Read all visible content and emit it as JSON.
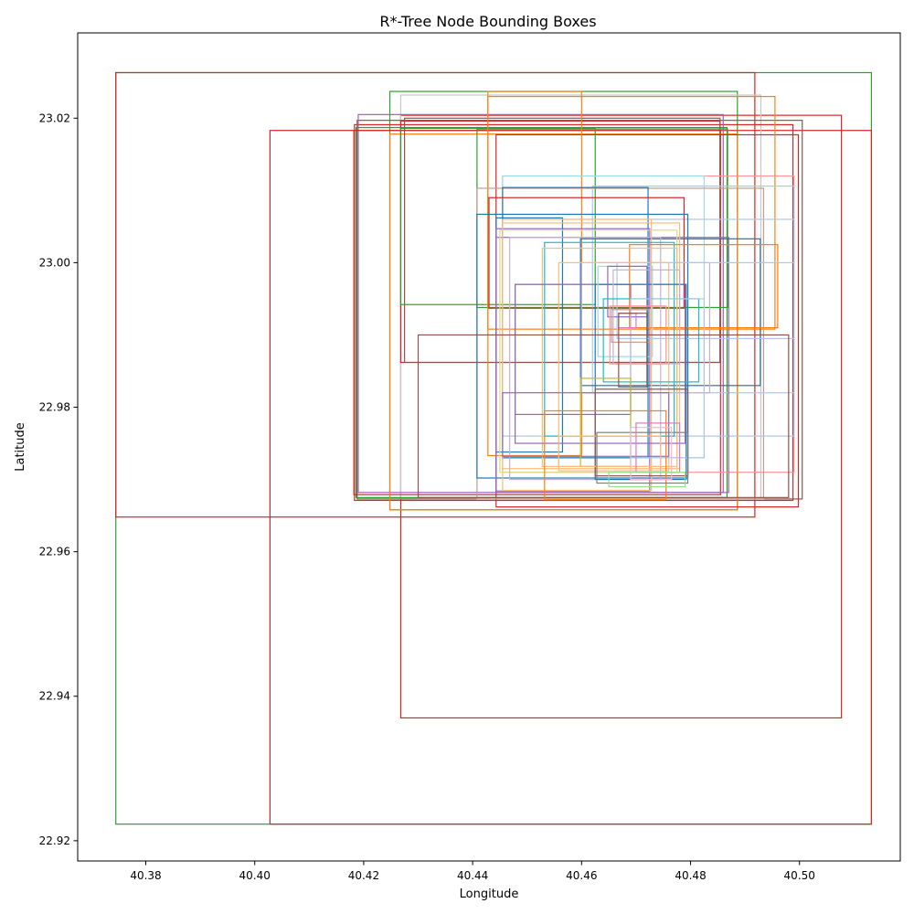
{
  "chart_data": {
    "type": "rectangles",
    "title": "R*-Tree Node Bounding Boxes",
    "xlabel": "Longitude",
    "ylabel": "Latitude",
    "xlim": [
      40.3675,
      40.5185
    ],
    "ylim": [
      22.9172,
      23.0318
    ],
    "x_ticks": [
      "40.38",
      "40.40",
      "40.42",
      "40.44",
      "40.46",
      "40.48",
      "40.50"
    ],
    "y_ticks": [
      "22.92",
      "22.94",
      "22.96",
      "22.98",
      "23.00",
      "23.02"
    ],
    "grid": false,
    "legend": "none",
    "palette": [
      "#1f77b4",
      "#ff7f0e",
      "#2ca02c",
      "#d62728",
      "#9467bd",
      "#8c564b",
      "#e377c2",
      "#7f7f7f",
      "#bcbd22",
      "#17becf",
      "#aec7e8",
      "#ffbb78",
      "#98df8a",
      "#ff9896",
      "#c5b0d5",
      "#c49c94",
      "#f7b6d2",
      "#c7c7c7",
      "#dbdb8d",
      "#9edae5"
    ],
    "boxes": [
      {
        "xmin": 40.3745,
        "ymin": 22.9223,
        "xmax": 40.5132,
        "ymax": 23.0263,
        "color": "#2ca02c"
      },
      {
        "xmin": 40.4028,
        "ymin": 22.9223,
        "xmax": 40.5132,
        "ymax": 23.0183,
        "color": "#d62728"
      },
      {
        "xmin": 40.3745,
        "ymin": 22.9648,
        "xmax": 40.4918,
        "ymax": 23.0263,
        "color": "#d62728"
      },
      {
        "xmin": 40.4268,
        "ymin": 22.937,
        "xmax": 40.5077,
        "ymax": 23.0204,
        "color": "#d62728"
      },
      {
        "xmin": 40.4248,
        "ymin": 22.9658,
        "xmax": 40.4886,
        "ymax": 23.0237,
        "color": "#2ca02c"
      },
      {
        "xmin": 40.4268,
        "ymin": 22.9673,
        "xmax": 40.4929,
        "ymax": 23.0232,
        "color": "#c7c7c7"
      },
      {
        "xmin": 40.4183,
        "ymin": 22.9671,
        "xmax": 40.4988,
        "ymax": 23.0191,
        "color": "#d62728"
      },
      {
        "xmin": 40.4188,
        "ymin": 22.9673,
        "xmax": 40.5005,
        "ymax": 23.0197,
        "color": "#8c564b"
      },
      {
        "xmin": 40.419,
        "ymin": 22.9682,
        "xmax": 40.486,
        "ymax": 23.0205,
        "color": "#9467bd"
      },
      {
        "xmin": 40.4186,
        "ymin": 22.9675,
        "xmax": 40.4867,
        "ymax": 23.0187,
        "color": "#2ca02c"
      },
      {
        "xmin": 40.4182,
        "ymin": 22.9679,
        "xmax": 40.4855,
        "ymax": 23.0183,
        "color": "#d62728"
      },
      {
        "xmin": 40.4248,
        "ymin": 22.9658,
        "xmax": 40.4886,
        "ymax": 23.0178,
        "color": "#ff7f0e"
      },
      {
        "xmin": 40.4443,
        "ymin": 22.9662,
        "xmax": 40.4998,
        "ymax": 23.0177,
        "color": "#d62728"
      },
      {
        "xmin": 40.4268,
        "ymin": 22.9862,
        "xmax": 40.4854,
        "ymax": 23.0196,
        "color": "#d62728"
      },
      {
        "xmin": 40.4275,
        "ymin": 22.9862,
        "xmax": 40.4854,
        "ymax": 23.02,
        "color": "#8c564b"
      },
      {
        "xmin": 40.4408,
        "ymin": 22.9938,
        "xmax": 40.4868,
        "ymax": 23.0185,
        "color": "#2ca02c"
      },
      {
        "xmin": 40.4268,
        "ymin": 22.9942,
        "xmax": 40.4625,
        "ymax": 23.0186,
        "color": "#2ca02c"
      },
      {
        "xmin": 40.4428,
        "ymin": 22.9733,
        "xmax": 40.46,
        "ymax": 23.0237,
        "color": "#ff7f0e"
      },
      {
        "xmin": 40.4428,
        "ymin": 22.9908,
        "xmax": 40.4955,
        "ymax": 23.023,
        "color": "#ff7f0e"
      },
      {
        "xmin": 40.4455,
        "ymin": 22.971,
        "xmax": 40.499,
        "ymax": 23.012,
        "color": "#ff9896"
      },
      {
        "xmin": 40.4455,
        "ymin": 22.973,
        "xmax": 40.4825,
        "ymax": 23.012,
        "color": "#9edae5"
      },
      {
        "xmin": 40.4408,
        "ymin": 22.9673,
        "xmax": 40.4934,
        "ymax": 23.0103,
        "color": "#c49c94"
      },
      {
        "xmin": 40.4455,
        "ymin": 22.976,
        "xmax": 40.499,
        "ymax": 23.006,
        "color": "#aec7e8"
      },
      {
        "xmin": 40.462,
        "ymin": 22.982,
        "xmax": 40.499,
        "ymax": 23.0106,
        "color": "#aec7e8"
      },
      {
        "xmin": 40.4455,
        "ymin": 22.973,
        "xmax": 40.4722,
        "ymax": 23.0104,
        "color": "#1f77b4"
      },
      {
        "xmin": 40.443,
        "ymin": 22.9937,
        "xmax": 40.4788,
        "ymax": 23.009,
        "color": "#d62728"
      },
      {
        "xmin": 40.4408,
        "ymin": 22.9702,
        "xmax": 40.4795,
        "ymax": 23.0067,
        "color": "#1f77b4"
      },
      {
        "xmin": 40.4443,
        "ymin": 22.9738,
        "xmax": 40.4565,
        "ymax": 23.0062,
        "color": "#1f77b4"
      },
      {
        "xmin": 40.4443,
        "ymin": 22.9684,
        "xmax": 40.4725,
        "ymax": 23.0047,
        "color": "#9467bd"
      },
      {
        "xmin": 40.4443,
        "ymin": 22.9682,
        "xmax": 40.487,
        "ymax": 23.0035,
        "color": "#9467bd"
      },
      {
        "xmin": 40.4598,
        "ymin": 22.983,
        "xmax": 40.4928,
        "ymax": 23.0033,
        "color": "#1f77b4"
      },
      {
        "xmin": 40.4455,
        "ymin": 22.9685,
        "xmax": 40.4728,
        "ymax": 23.006,
        "color": "#ffbb78"
      },
      {
        "xmin": 40.4455,
        "ymin": 22.9715,
        "xmax": 40.478,
        "ymax": 23.0055,
        "color": "#ffbb78"
      },
      {
        "xmin": 40.445,
        "ymin": 22.971,
        "xmax": 40.4775,
        "ymax": 23.0045,
        "color": "#dbdb8d"
      },
      {
        "xmin": 40.4468,
        "ymin": 22.97,
        "xmax": 40.4745,
        "ymax": 23.0035,
        "color": "#c5b0d5"
      },
      {
        "xmin": 40.4532,
        "ymin": 22.976,
        "xmax": 40.477,
        "ymax": 23.0028,
        "color": "#17becf"
      },
      {
        "xmin": 40.46,
        "ymin": 22.982,
        "xmax": 40.4835,
        "ymax": 23.0,
        "color": "#c5b0d5"
      },
      {
        "xmin": 40.4688,
        "ymin": 22.991,
        "xmax": 40.496,
        "ymax": 23.0025,
        "color": "#ff7f0e"
      },
      {
        "xmin": 40.4665,
        "ymin": 22.9895,
        "xmax": 40.499,
        "ymax": 23.0,
        "color": "#aec7e8"
      },
      {
        "xmin": 40.4528,
        "ymin": 22.9718,
        "xmax": 40.4775,
        "ymax": 23.002,
        "color": "#ffbb78"
      },
      {
        "xmin": 40.4558,
        "ymin": 22.9712,
        "xmax": 40.476,
        "ymax": 23.0,
        "color": "#ffbb78"
      },
      {
        "xmin": 40.4478,
        "ymin": 22.975,
        "xmax": 40.479,
        "ymax": 22.997,
        "color": "#9467bd"
      },
      {
        "xmin": 40.4478,
        "ymin": 22.979,
        "xmax": 40.469,
        "ymax": 22.997,
        "color": "#9467bd"
      },
      {
        "xmin": 40.4625,
        "ymin": 22.97,
        "xmax": 40.4792,
        "ymax": 22.997,
        "color": "#1f77b4"
      },
      {
        "xmin": 40.463,
        "ymin": 22.987,
        "xmax": 40.473,
        "ymax": 22.9995,
        "color": "#9edae5"
      },
      {
        "xmin": 40.4648,
        "ymin": 22.9925,
        "xmax": 40.472,
        "ymax": 22.9995,
        "color": "#9467bd"
      },
      {
        "xmin": 40.4658,
        "ymin": 22.986,
        "xmax": 40.478,
        "ymax": 22.999,
        "color": "#c5b0d5"
      },
      {
        "xmin": 40.464,
        "ymin": 22.9835,
        "xmax": 40.4815,
        "ymax": 22.995,
        "color": "#17becf"
      },
      {
        "xmin": 40.469,
        "ymin": 22.973,
        "xmax": 40.4825,
        "ymax": 22.995,
        "color": "#aec7e8"
      },
      {
        "xmin": 40.4652,
        "ymin": 22.986,
        "xmax": 40.4755,
        "ymax": 22.994,
        "color": "#ff9896"
      },
      {
        "xmin": 40.4655,
        "ymin": 22.989,
        "xmax": 40.4725,
        "ymax": 22.9935,
        "color": "#c49c94"
      },
      {
        "xmin": 40.4668,
        "ymin": 22.991,
        "xmax": 40.47,
        "ymax": 22.993,
        "color": "#e377c2"
      },
      {
        "xmin": 40.4668,
        "ymin": 22.9828,
        "xmax": 40.472,
        "ymax": 22.993,
        "color": "#8c564b"
      },
      {
        "xmin": 40.43,
        "ymin": 22.9675,
        "xmax": 40.498,
        "ymax": 22.99,
        "color": "#8c564b"
      },
      {
        "xmin": 40.4455,
        "ymin": 22.9732,
        "xmax": 40.476,
        "ymax": 22.982,
        "color": "#9467bd"
      },
      {
        "xmin": 40.4625,
        "ymin": 22.9705,
        "xmax": 40.4795,
        "ymax": 22.9825,
        "color": "#8c564b"
      },
      {
        "xmin": 40.4598,
        "ymin": 22.9718,
        "xmax": 40.469,
        "ymax": 22.984,
        "color": "#bcbd22"
      },
      {
        "xmin": 40.4532,
        "ymin": 22.9672,
        "xmax": 40.4755,
        "ymax": 22.9795,
        "color": "#ff7f0e"
      },
      {
        "xmin": 40.4558,
        "ymin": 22.9718,
        "xmax": 40.4745,
        "ymax": 22.976,
        "color": "#ffbb78"
      },
      {
        "xmin": 40.4628,
        "ymin": 22.9695,
        "xmax": 40.4795,
        "ymax": 22.9765,
        "color": "#7f7f7f"
      },
      {
        "xmin": 40.469,
        "ymin": 22.97,
        "xmax": 40.4765,
        "ymax": 22.9772,
        "color": "#f7b6d2"
      },
      {
        "xmin": 40.47,
        "ymin": 22.971,
        "xmax": 40.478,
        "ymax": 22.9778,
        "color": "#e377c2"
      },
      {
        "xmin": 40.465,
        "ymin": 22.969,
        "xmax": 40.479,
        "ymax": 22.971,
        "color": "#98df8a"
      }
    ]
  }
}
